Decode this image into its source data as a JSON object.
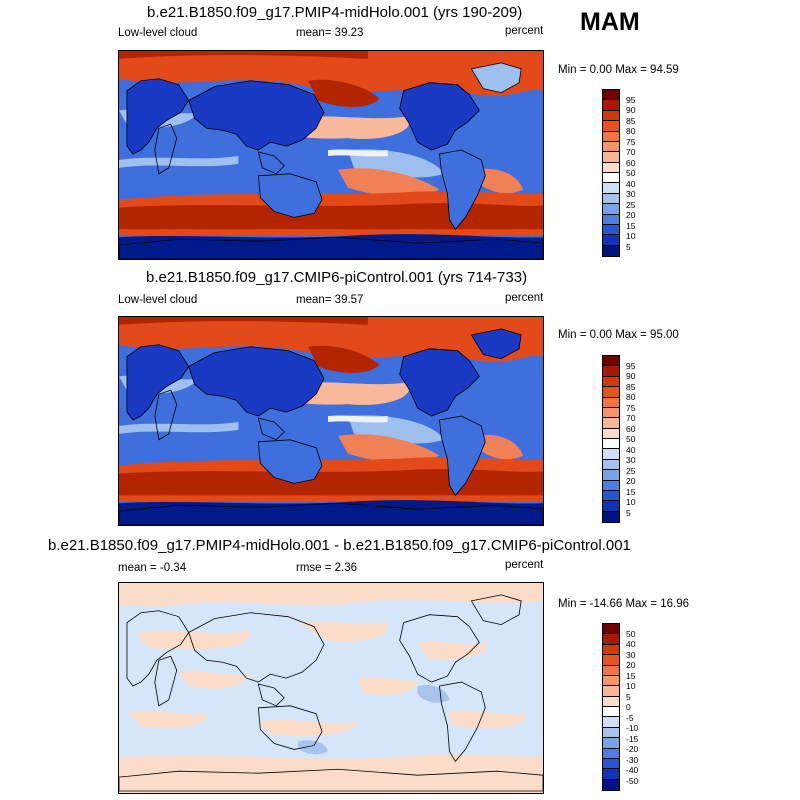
{
  "season_label": "MAM",
  "panels": [
    {
      "id": "midholo",
      "title": "b.e21.B1850.f09_g17.PMIP4-midHolo.001 (yrs 190-209)",
      "left_label": "Low-level cloud",
      "center_label": "mean=  39.23",
      "right_label": "percent",
      "minmax": "Min =  0.00 Max =  94.59",
      "colorbar": {
        "labels": [
          "95",
          "90",
          "85",
          "80",
          "75",
          "70",
          "60",
          "50",
          "40",
          "30",
          "25",
          "20",
          "15",
          "10",
          "5"
        ],
        "colors": [
          "#6e0000",
          "#a51a00",
          "#d03a08",
          "#e6531e",
          "#ef7545",
          "#f4946b",
          "#f8b695",
          "#fadcc8",
          "#ffffff",
          "#cfe0f6",
          "#a6c3ee",
          "#7aa2e6",
          "#4f7fdc",
          "#2a55d0",
          "#1233b6",
          "#00137e"
        ]
      }
    },
    {
      "id": "picontrol",
      "title": "b.e21.B1850.f09_g17.CMIP6-piControl.001 (yrs 714-733)",
      "left_label": "Low-level cloud",
      "center_label": "mean=  39.57",
      "right_label": "percent",
      "minmax": "Min =  0.00 Max =  95.00",
      "colorbar": {
        "labels": [
          "95",
          "90",
          "85",
          "80",
          "75",
          "70",
          "60",
          "50",
          "40",
          "30",
          "25",
          "20",
          "15",
          "10",
          "5"
        ],
        "colors": [
          "#6e0000",
          "#a51a00",
          "#d03a08",
          "#e6531e",
          "#ef7545",
          "#f4946b",
          "#f8b695",
          "#fadcc8",
          "#ffffff",
          "#cfe0f6",
          "#a6c3ee",
          "#7aa2e6",
          "#4f7fdc",
          "#2a55d0",
          "#1233b6",
          "#00137e"
        ]
      }
    },
    {
      "id": "difference",
      "title": "b.e21.B1850.f09_g17.PMIP4-midHolo.001 - b.e21.B1850.f09_g17.CMIP6-piControl.001",
      "left_label": "mean =  -0.34",
      "center_label": "rmse =   2.36",
      "right_label": "percent",
      "minmax": "Min = -14.66 Max =  16.96",
      "colorbar": {
        "labels": [
          "50",
          "40",
          "30",
          "20",
          "15",
          "10",
          "5",
          "0",
          "-5",
          "-10",
          "-15",
          "-20",
          "-30",
          "-40",
          "-50"
        ],
        "colors": [
          "#6e0000",
          "#a51a00",
          "#d03a08",
          "#e6531e",
          "#ef7545",
          "#f4946b",
          "#f8b695",
          "#fadcc8",
          "#ffffff",
          "#cfe0f6",
          "#a6c3ee",
          "#7aa2e6",
          "#4f7fdc",
          "#2a55d0",
          "#1233b6",
          "#00137e"
        ]
      }
    }
  ],
  "field_colors": {
    "very_high": "#b32400",
    "high": "#e24a1a",
    "mid_high": "#f08056",
    "mid": "#f7b89c",
    "neutral": "#eef1f8",
    "mid_low": "#9fbfee",
    "low": "#3f6fdc",
    "very_low": "#1a3ac4",
    "deep": "#001a8a",
    "diff_pos": "#fbdcc8",
    "diff_neg": "#d6e6fa",
    "diff_neg_strong": "#a8c4ee"
  }
}
